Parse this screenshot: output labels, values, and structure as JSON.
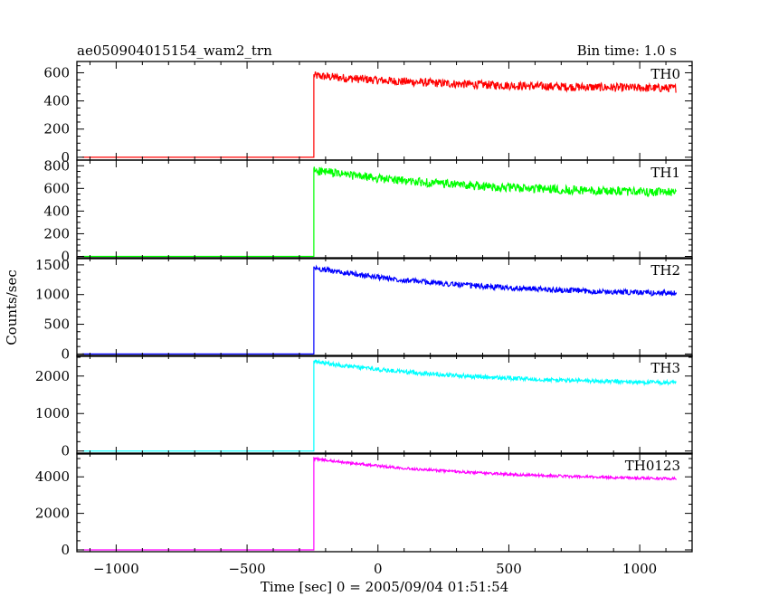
{
  "header": {
    "title": "ae050904015154_wam2_trn",
    "bin_time": "Bin time: 1.0 s"
  },
  "axes": {
    "ylabel": "Counts/sec",
    "xlabel": "Time [sec] 0 = 2005/09/04 01:51:54",
    "xlim": [
      -1150,
      1200
    ],
    "xticks": [
      -1000,
      -500,
      0,
      500,
      1000
    ],
    "xtick_labels": [
      "−1000",
      "−500",
      "0",
      "500",
      "1000"
    ]
  },
  "chart_data": {
    "type": "line",
    "x_start": -1130,
    "x_step_change": -245,
    "x_end": 1140,
    "series": [
      {
        "name": "TH0",
        "color": "#ff0000",
        "ylim": [
          -20,
          680
        ],
        "yticks": [
          0,
          200,
          400,
          600
        ],
        "pre_level": 0,
        "start_level": 580,
        "end_level": 490,
        "noise": 30
      },
      {
        "name": "TH1",
        "color": "#00ff00",
        "ylim": [
          -20,
          850
        ],
        "yticks": [
          0,
          200,
          400,
          600,
          800
        ],
        "pre_level": 0,
        "start_level": 760,
        "end_level": 565,
        "noise": 38
      },
      {
        "name": "TH2",
        "color": "#0000ff",
        "ylim": [
          -40,
          1620
        ],
        "yticks": [
          0,
          500,
          1000,
          1500
        ],
        "pre_level": 0,
        "start_level": 1450,
        "end_level": 1020,
        "noise": 45
      },
      {
        "name": "TH3",
        "color": "#00ffff",
        "ylim": [
          -80,
          2550
        ],
        "yticks": [
          0,
          1000,
          2000
        ],
        "pre_level": 0,
        "start_level": 2380,
        "end_level": 1820,
        "noise": 55
      },
      {
        "name": "TH0123",
        "color": "#ff00ff",
        "ylim": [
          -100,
          5300
        ],
        "yticks": [
          0,
          2000,
          4000
        ],
        "pre_level": 0,
        "start_level": 5000,
        "end_level": 3900,
        "noise": 70
      }
    ]
  }
}
